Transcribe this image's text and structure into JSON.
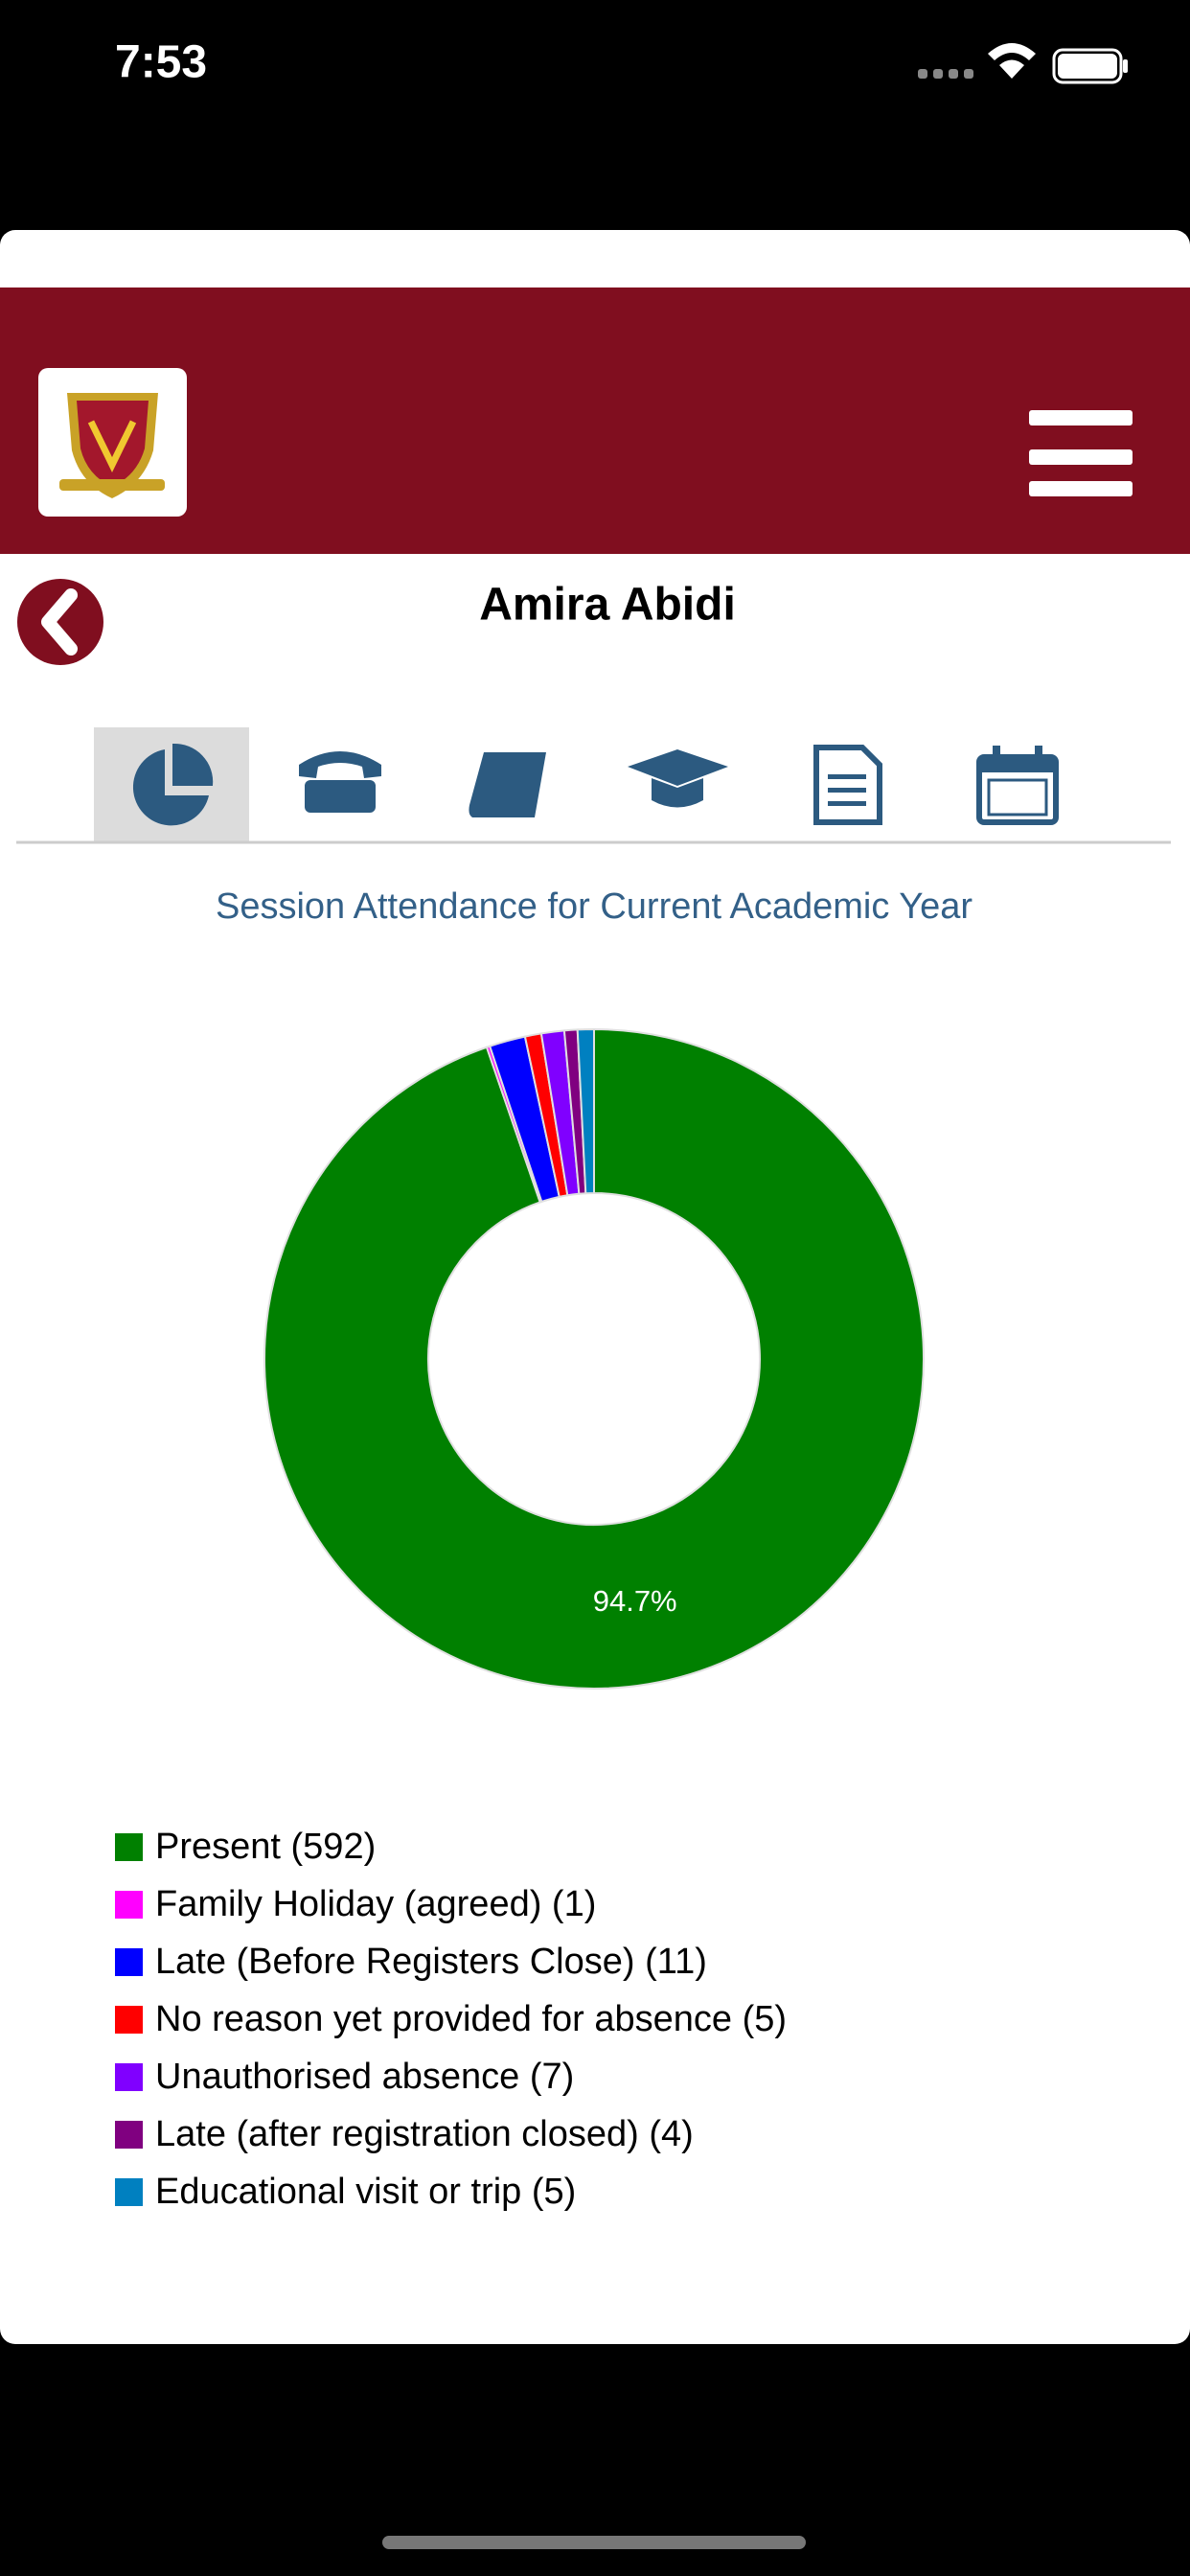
{
  "status_bar": {
    "time": "7:53"
  },
  "header": {
    "name": "Amira Abidi"
  },
  "chart_data": {
    "type": "pie",
    "title": "Session Attendance for Current Academic Year",
    "categories": [
      "Present (592)",
      "Family Holiday (agreed) (1)",
      "Late (Before Registers Close) (11)",
      "No reason yet provided for absence (5)",
      "Unauthorised absence (7)",
      "Late (after registration closed) (4)",
      "Educational visit or trip (5)"
    ],
    "values": [
      592,
      1,
      11,
      5,
      7,
      4,
      5
    ],
    "colors": [
      "#008000",
      "#ff00ff",
      "#0000ff",
      "#ff0000",
      "#8000ff",
      "#800080",
      "#0080c0"
    ],
    "annotations": [
      {
        "text": "94.7%",
        "slice": 0
      }
    ]
  }
}
